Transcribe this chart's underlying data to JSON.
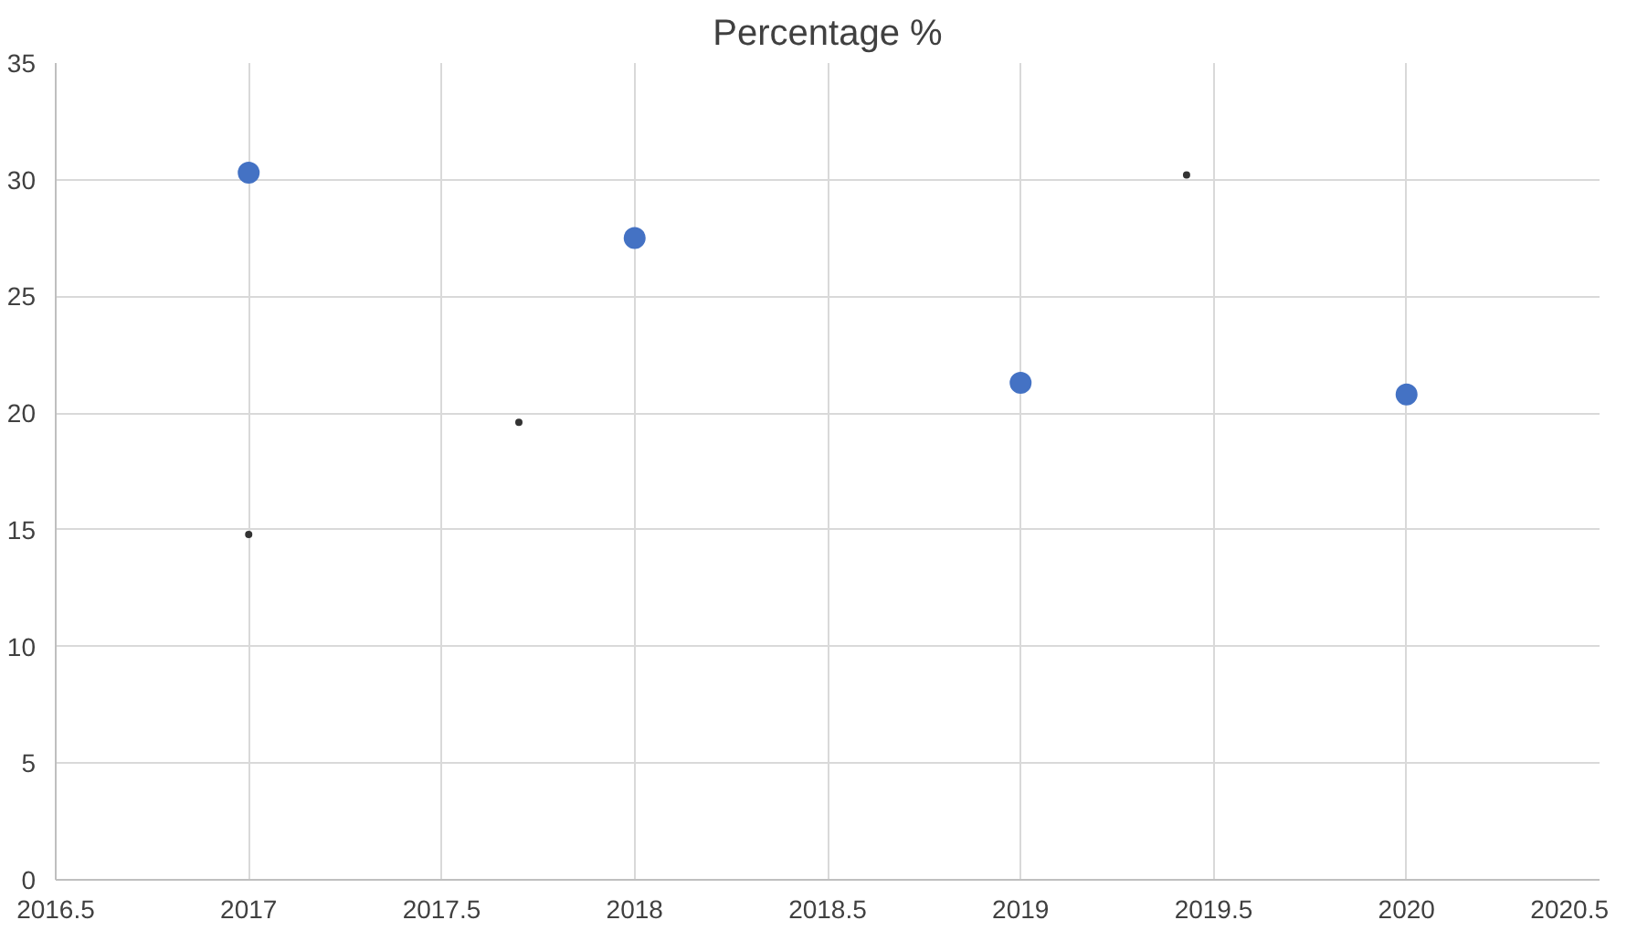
{
  "chart_data": {
    "type": "scatter",
    "title": "Percentage %",
    "series": [
      {
        "color": "#4472c4",
        "x": [
          2017,
          2018,
          2019,
          2020
        ],
        "values": [
          30.3,
          27.5,
          21.3,
          20.8
        ],
        "marker": "circle"
      },
      {
        "color": "#333333",
        "x": [
          2017,
          2017.7,
          2019.43
        ],
        "values": [
          14.8,
          19.6,
          30.2
        ],
        "marker": "circle"
      }
    ],
    "xlim": [
      2016.5,
      2020.5
    ],
    "xticks": [
      2016.5,
      2017,
      2017.5,
      2018,
      2018.5,
      2019,
      2019.5,
      2020,
      2020.5
    ],
    "ylim": [
      0,
      35
    ],
    "yticks": [
      0,
      5,
      10,
      15,
      20,
      25,
      30,
      35
    ],
    "grid": true
  }
}
